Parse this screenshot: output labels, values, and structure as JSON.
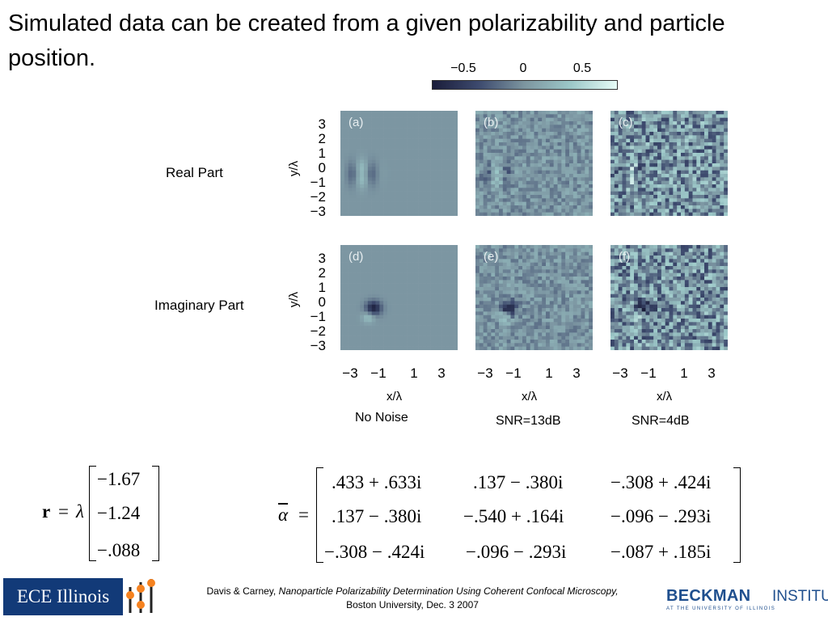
{
  "slide": {
    "title": "Simulated data can be created from a given polarizability and particle position."
  },
  "figure": {
    "colorbar": {
      "ticks": [
        "−0.5",
        "0",
        "0.5"
      ]
    },
    "row_labels": [
      "Real Part",
      "Imaginary Part"
    ],
    "y_axis_label": "y/λ",
    "x_axis_label": "x/λ",
    "y_ticks": [
      "3",
      "2",
      "1",
      "0",
      "−1",
      "−2",
      "−3"
    ],
    "x_ticks": [
      "−3",
      "−1",
      "1",
      "3"
    ],
    "panels": [
      "(a)",
      "(b)",
      "(c)",
      "(d)",
      "(e)",
      "(f)"
    ],
    "column_captions": [
      "No Noise",
      "SNR=13dB",
      "SNR=4dB"
    ]
  },
  "equations": {
    "position": {
      "lhs": "r",
      "eq": "=",
      "lambda": "λ",
      "entries": [
        "−1.67",
        "−1.24",
        "−.088"
      ]
    },
    "polarizability": {
      "lhs": "α",
      "eq": "=",
      "rows": [
        [
          ".433 + .633i",
          ".137 − .380i",
          "−.308 + .424i"
        ],
        [
          ".137 − .380i",
          "−.540 + .164i",
          "−.096 − .293i"
        ],
        [
          "−.308 − .424i",
          "−.096 − .293i",
          "−.087 + .185i"
        ]
      ]
    }
  },
  "footer": {
    "authors": "Davis & Carney,",
    "paper_title": "Nanoparticle Polarizability Determination Using Coherent Confocal Microscopy,",
    "venue": "Boston University, Dec. 3 2007"
  },
  "logos": {
    "left_text": "ECE Illinois",
    "right_name": "BECKMAN",
    "right_institute": "INSTITUTE",
    "right_sub": "AT THE UNIVERSITY OF ILLINOIS"
  },
  "colors": {
    "panel_background": "#7c96a2",
    "ece_blue": "#123a78",
    "beckman_blue": "#1f4f8e"
  }
}
